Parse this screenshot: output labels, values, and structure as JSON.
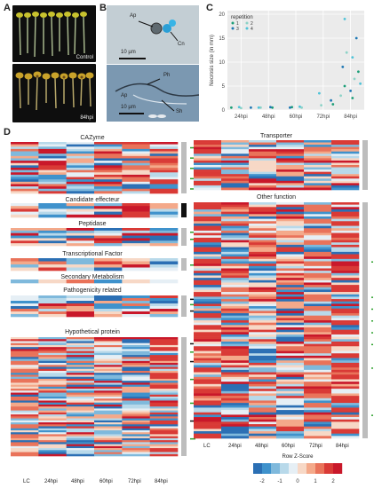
{
  "panels": {
    "A": "A",
    "B": "B",
    "C": "C",
    "D": "D"
  },
  "panel_a": {
    "label_top": "Control",
    "label_bottom": "84hpi"
  },
  "panel_b": {
    "top": {
      "ap": "Ap",
      "cn": "Cn",
      "scale": "10 µm"
    },
    "bottom": {
      "ph": "Ph",
      "ap": "Ap",
      "sh": "Sh",
      "scale": "10 µm"
    }
  },
  "chart_data": {
    "type": "scatter",
    "title": "",
    "xlabel": "",
    "ylabel": "Necrosis size (in mm)",
    "categories": [
      "24hpi",
      "48hpi",
      "60hpi",
      "72hpi",
      "84hpi"
    ],
    "yticks": [
      0,
      5,
      10,
      15,
      20
    ],
    "ylim": [
      0,
      20
    ],
    "grid": true,
    "legend": {
      "title": "repetition",
      "items": [
        "1",
        "2",
        "3",
        "4"
      ],
      "position": "top-left"
    },
    "series": [
      {
        "name": "1",
        "x": [
          "24hpi",
          "48hpi",
          "60hpi",
          "72hpi",
          "84hpi",
          "84hpi",
          "84hpi"
        ],
        "y": [
          0.5,
          0.5,
          0.6,
          1.2,
          2.5,
          5.0,
          8.0
        ]
      },
      {
        "name": "2",
        "x": [
          "24hpi",
          "48hpi",
          "60hpi",
          "72hpi",
          "84hpi",
          "84hpi",
          "84hpi"
        ],
        "y": [
          0.4,
          0.5,
          0.5,
          1.0,
          3.0,
          6.5,
          12.0
        ]
      },
      {
        "name": "3",
        "x": [
          "24hpi",
          "48hpi",
          "60hpi",
          "72hpi",
          "84hpi",
          "84hpi",
          "84hpi"
        ],
        "y": [
          0.5,
          0.6,
          0.5,
          2.0,
          4.0,
          9.0,
          15.0
        ]
      },
      {
        "name": "4",
        "x": [
          "24hpi",
          "48hpi",
          "60hpi",
          "72hpi",
          "84hpi",
          "84hpi",
          "84hpi"
        ],
        "y": [
          0.6,
          0.5,
          0.7,
          3.5,
          5.5,
          11.0,
          19.0
        ]
      }
    ]
  },
  "heatmap": {
    "columns": [
      "LC",
      "24hpi",
      "48hpi",
      "60hpi",
      "72hpi",
      "84hpi"
    ],
    "left_groups": [
      "CAZyme",
      "Candidate effecteur",
      "Peptidase",
      "Transcriptional Factor",
      "Secondary Metabolism",
      "Pathogenicity related",
      "Hypothetical protein"
    ],
    "right_groups": [
      "Transporter",
      "Other function"
    ],
    "legend": {
      "title": "Row Z-Score",
      "ticks": [
        "-2",
        "-1",
        "0",
        "1",
        "2"
      ]
    }
  }
}
